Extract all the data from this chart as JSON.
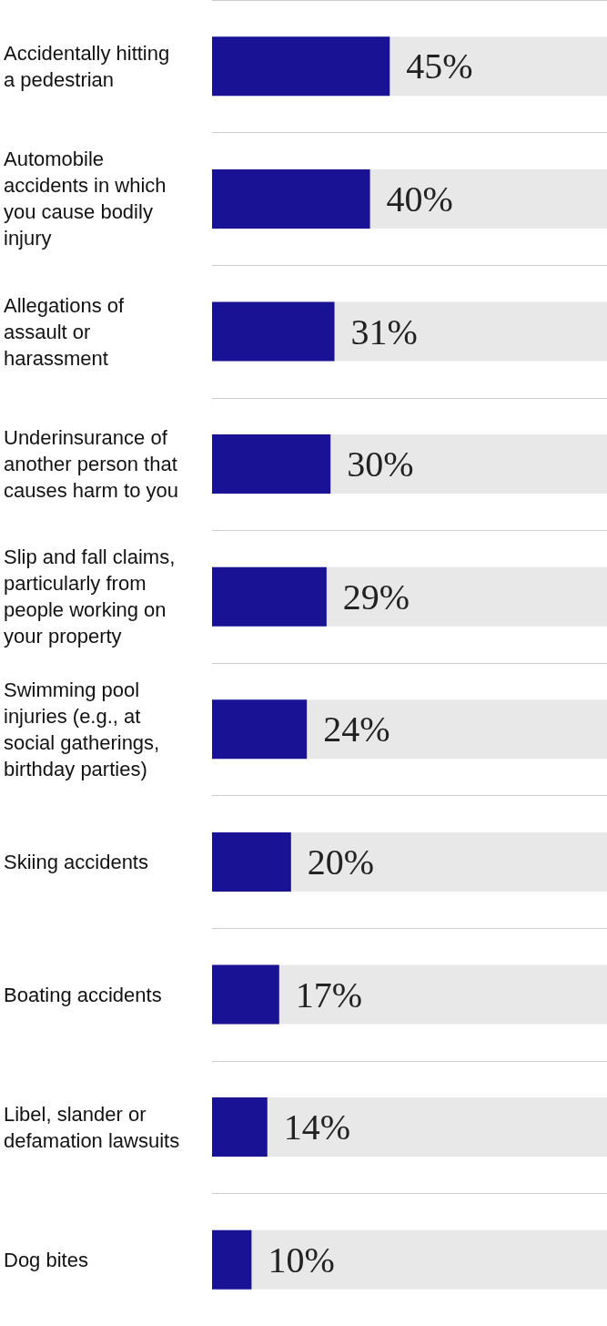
{
  "chart_data": {
    "type": "bar",
    "orientation": "horizontal",
    "categories": [
      "Accidentally hitting a pedestrian",
      "Automobile accidents in which you cause bodily injury",
      "Allegations of assault or harassment",
      "Underinsurance of another person that causes harm to you",
      "Slip and fall claims, particularly from people working on your property",
      "Swimming pool injuries (e.g., at social gatherings, birthday parties)",
      "Skiing accidents",
      "Boating accidents",
      "Libel, slander or defamation lawsuits",
      "Dog bites"
    ],
    "values": [
      45,
      40,
      31,
      30,
      29,
      24,
      20,
      17,
      14,
      10
    ],
    "value_labels": [
      "45%",
      "40%",
      "31%",
      "30%",
      "29%",
      "24%",
      "20%",
      "17%",
      "14%",
      "10%"
    ],
    "color": "#1a1294",
    "xlim": [
      0,
      100
    ],
    "tick_labels": "y",
    "grid": "y"
  }
}
